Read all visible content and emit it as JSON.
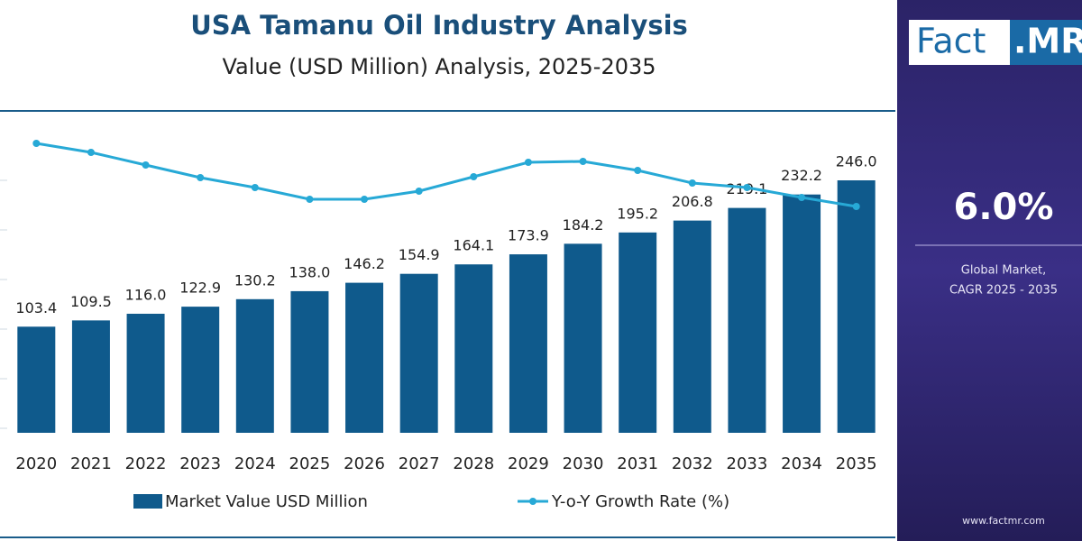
{
  "chart_data": {
    "type": "bar",
    "title": "USA Tamanu Oil Industry Analysis",
    "subtitle": "Value (USD Million) Analysis, 2025-2035",
    "categories": [
      "2020",
      "2021",
      "2022",
      "2023",
      "2024",
      "2025",
      "2026",
      "2027",
      "2028",
      "2029",
      "2030",
      "2031",
      "2032",
      "2033",
      "2034",
      "2035"
    ],
    "series": [
      {
        "name": "Market Value USD Million",
        "type": "bar",
        "color": "#0f5a8c",
        "values": [
          103.4,
          109.5,
          116.0,
          122.9,
          130.2,
          138.0,
          146.2,
          154.9,
          164.1,
          173.9,
          184.2,
          195.2,
          206.8,
          219.1,
          232.2,
          246.0
        ],
        "value_labels": [
          "103.4",
          "109.5",
          "116.0",
          "122.9",
          "130.2",
          "138.0",
          "146.2",
          "154.9",
          "164.1",
          "173.9",
          "184.2",
          "195.2",
          "206.8",
          "219.1",
          "232.2",
          "246.0"
        ]
      },
      {
        "name": "Y-o-Y Growth Rate (%)",
        "type": "line",
        "color": "#27a9d6",
        "values": [
          7.0,
          6.8,
          6.52,
          6.24,
          6.02,
          5.76,
          5.76,
          5.94,
          6.26,
          6.58,
          6.6,
          6.4,
          6.12,
          6.02,
          5.8,
          5.6
        ]
      }
    ]
  },
  "sidebar": {
    "logo_left": "Fact",
    "logo_right": ".MR",
    "cagr": "6.0%",
    "caption_line1": "Global Market,",
    "caption_line2": "CAGR 2025 - 2035",
    "url": "www.factmr.com"
  }
}
